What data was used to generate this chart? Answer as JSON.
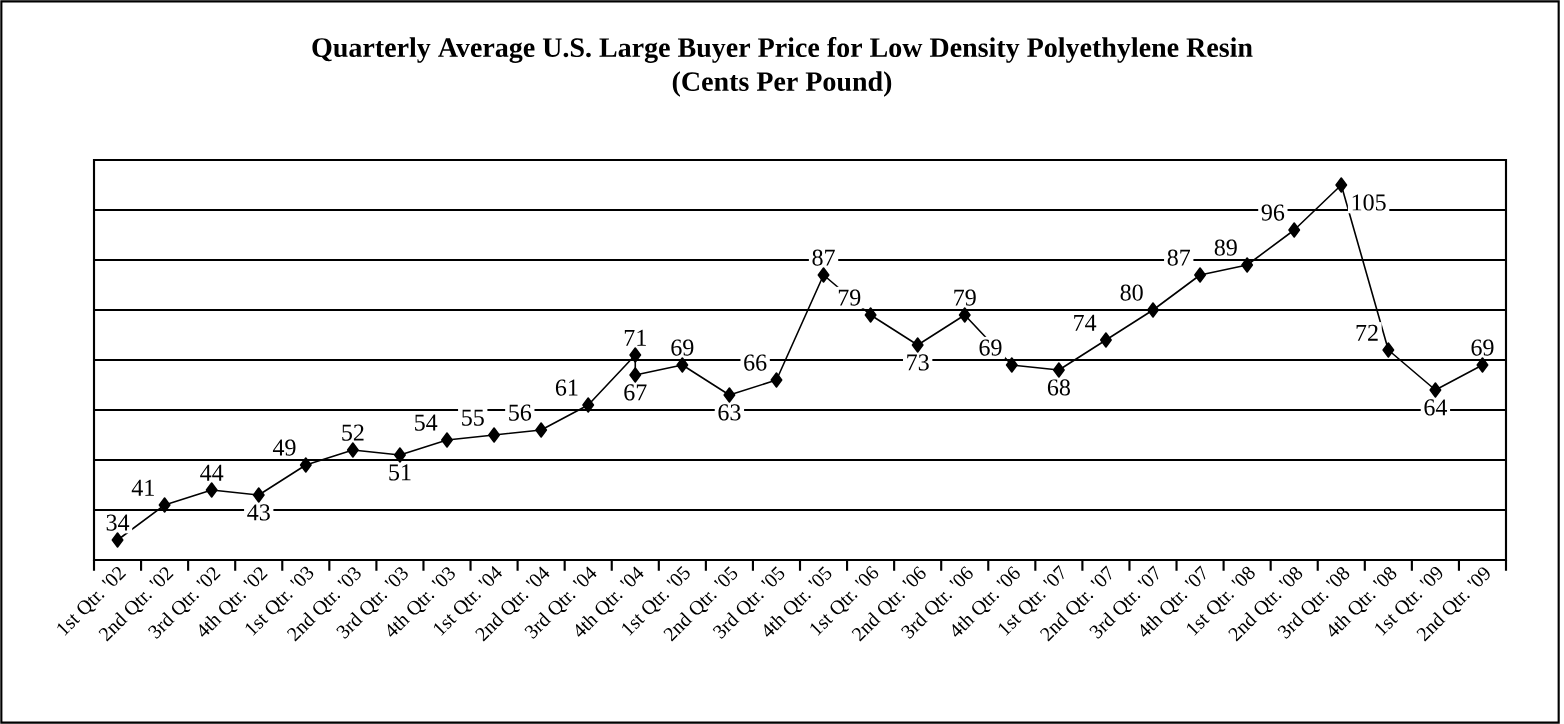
{
  "chart_data": {
    "type": "line",
    "title": "Quarterly Average U.S. Large Buyer Price for Low Density Polyethylene Resin",
    "subtitle": "(Cents Per Pound)",
    "categories": [
      "1st Qtr. '02",
      "2nd Qtr. '02",
      "3rd Qtr. '02",
      "4th Qtr. '02",
      "1st Qtr. '03",
      "2nd Qtr. '03",
      "3rd Qtr. '03",
      "4th Qtr. '03",
      "1st Qtr. '04",
      "2nd Qtr. '04",
      "3rd Qtr. '04",
      "4th Qtr. '04",
      "1st Qtr. '05",
      "2nd Qtr. '05",
      "3rd Qtr. '05",
      "4th Qtr. '05",
      "1st Qtr. '06",
      "2nd Qtr. '06",
      "3rd Qtr. '06",
      "4th Qtr. '06",
      "1st Qtr. '07",
      "2nd Qtr. '07",
      "3rd Qtr. '07",
      "4th Qtr. '07",
      "1st Qtr. '08",
      "2nd Qtr. '08",
      "3rd Qtr. '08",
      "4th Qtr. '08",
      "1st Qtr. '09",
      "2nd Qtr. '09"
    ],
    "series": [
      {
        "color": "#000000",
        "x": [
          "1st Qtr. '02",
          "2nd Qtr. '02",
          "3rd Qtr. '02",
          "4th Qtr. '02",
          "1st Qtr. '03",
          "2nd Qtr. '03",
          "3rd Qtr. '03",
          "4th Qtr. '03",
          "1st Qtr. '04",
          "2nd Qtr. '04",
          "3rd Qtr. '04",
          "4th Qtr. '04",
          "4th Qtr. '04",
          "1st Qtr. '05",
          "2nd Qtr. '05",
          "3rd Qtr. '05",
          "4th Qtr. '05",
          "1st Qtr. '06",
          "2nd Qtr. '06",
          "3rd Qtr. '06",
          "4th Qtr. '06",
          "1st Qtr. '07",
          "2nd Qtr. '07",
          "3rd Qtr. '07",
          "4th Qtr. '07",
          "1st Qtr. '08",
          "2nd Qtr. '08",
          "3rd Qtr. '08",
          "4th Qtr. '08",
          "1st Qtr. '09",
          "2nd Qtr. '09"
        ],
        "values": [
          34,
          41,
          44,
          43,
          49,
          52,
          51,
          54,
          55,
          56,
          61,
          71,
          67,
          69,
          63,
          66,
          87,
          79,
          73,
          79,
          69,
          68,
          74,
          80,
          87,
          89,
          96,
          105,
          72,
          64,
          69
        ]
      }
    ],
    "ylim": [
      30,
      110
    ],
    "yticks": [
      {
        "value": 40,
        "label": null
      },
      {
        "value": 50,
        "label": null
      },
      {
        "value": 60,
        "label": null
      },
      {
        "value": 70,
        "label": null
      },
      {
        "value": 80,
        "label": null
      },
      {
        "value": 90,
        "label": null
      },
      {
        "value": 100,
        "label": null
      }
    ],
    "tick_labels": "x",
    "grid": "y",
    "data_labels": true,
    "marker": "diamond",
    "line_style": "solid"
  }
}
